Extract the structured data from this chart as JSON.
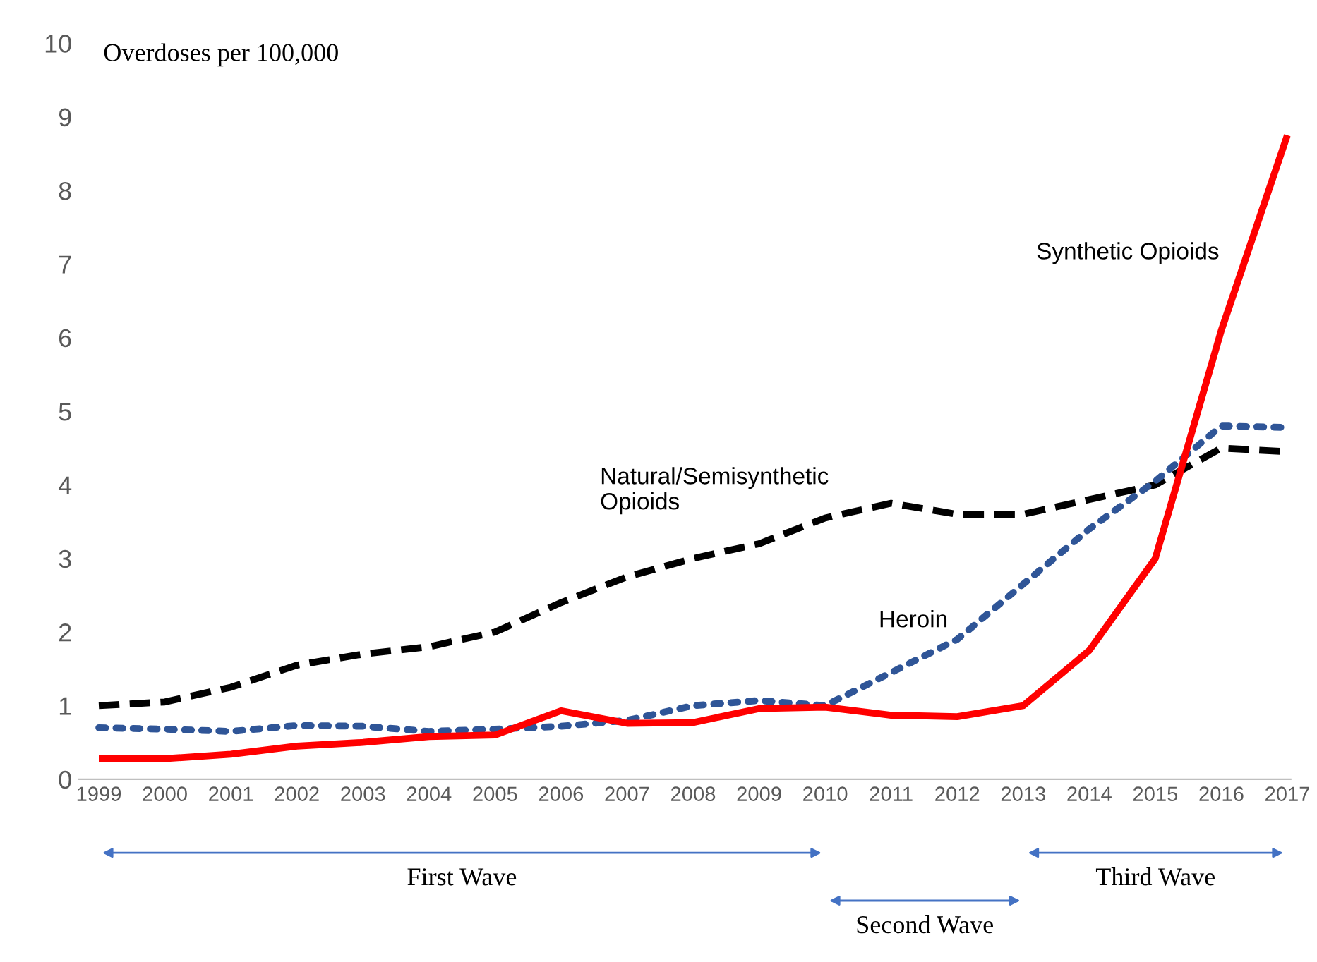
{
  "chart_data": {
    "type": "line",
    "ylabel": "Overdoses per 100,000",
    "categories": [
      "1999",
      "2000",
      "2001",
      "2002",
      "2003",
      "2004",
      "2005",
      "2006",
      "2007",
      "2008",
      "2009",
      "2010",
      "2011",
      "2012",
      "2013",
      "2014",
      "2015",
      "2016",
      "2017"
    ],
    "series": [
      {
        "color": "#000000",
        "line_style": "dashed",
        "values": [
          1.0,
          1.05,
          1.25,
          1.55,
          1.7,
          1.8,
          2.0,
          2.4,
          2.75,
          3.0,
          3.2,
          3.55,
          3.75,
          3.6,
          3.6,
          3.8,
          4.0,
          4.5,
          4.45
        ]
      },
      {
        "color": "#2f5597",
        "line_style": "dotted",
        "values": [
          0.7,
          0.68,
          0.65,
          0.73,
          0.72,
          0.65,
          0.68,
          0.72,
          0.8,
          1.0,
          1.07,
          1.0,
          1.45,
          1.9,
          2.65,
          3.4,
          4.05,
          4.8,
          4.78
        ]
      },
      {
        "color": "#ff0000",
        "line_style": "solid",
        "values": [
          0.28,
          0.28,
          0.34,
          0.45,
          0.5,
          0.58,
          0.6,
          0.93,
          0.76,
          0.77,
          0.96,
          0.98,
          0.87,
          0.85,
          1.0,
          1.75,
          3.0,
          6.1,
          8.75
        ]
      }
    ],
    "ylim": [
      0,
      10
    ],
    "yticks": [
      0,
      1,
      2,
      3,
      4,
      5,
      6,
      7,
      8,
      9,
      10
    ],
    "grid": false,
    "annotations": [
      "Natural/Semisynthetic\nOpioids",
      "Heroin",
      "Synthetic Opioids",
      "First Wave",
      "Second Wave",
      "Third Wave"
    ]
  }
}
